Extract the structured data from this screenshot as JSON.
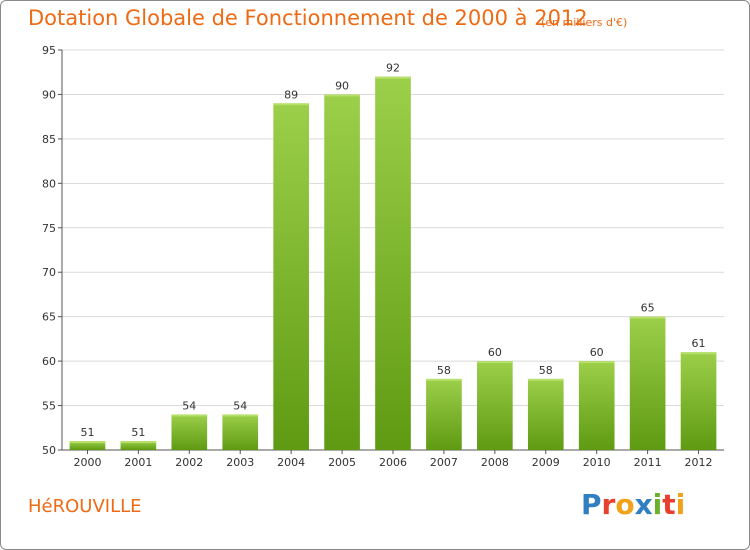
{
  "header": {
    "title": "Dotation Globale de Fonctionnement de 2000 à 2012",
    "subtitle": "(en milliers d'€)"
  },
  "footer": {
    "commune": "HéROUVILLE",
    "logo": "Proxiti"
  },
  "colors": {
    "accent": "#ee6a14",
    "bar_light": "#9ccf4a",
    "bar_dark": "#5f9a13",
    "grid": "#d9d9d9"
  },
  "chart_data": {
    "type": "bar",
    "categories": [
      "2000",
      "2001",
      "2002",
      "2003",
      "2004",
      "2005",
      "2006",
      "2007",
      "2008",
      "2009",
      "2010",
      "2011",
      "2012"
    ],
    "values": [
      51,
      51,
      54,
      54,
      89,
      90,
      92,
      58,
      60,
      58,
      60,
      65,
      61
    ],
    "title": "Dotation Globale de Fonctionnement de 2000 à 2012",
    "subtitle": "(en milliers d'€)",
    "xlabel": "",
    "ylabel": "",
    "ylim": [
      50,
      95
    ],
    "yticks": [
      50,
      55,
      60,
      65,
      70,
      75,
      80,
      85,
      90,
      95
    ],
    "grid": true,
    "legend": "none"
  }
}
